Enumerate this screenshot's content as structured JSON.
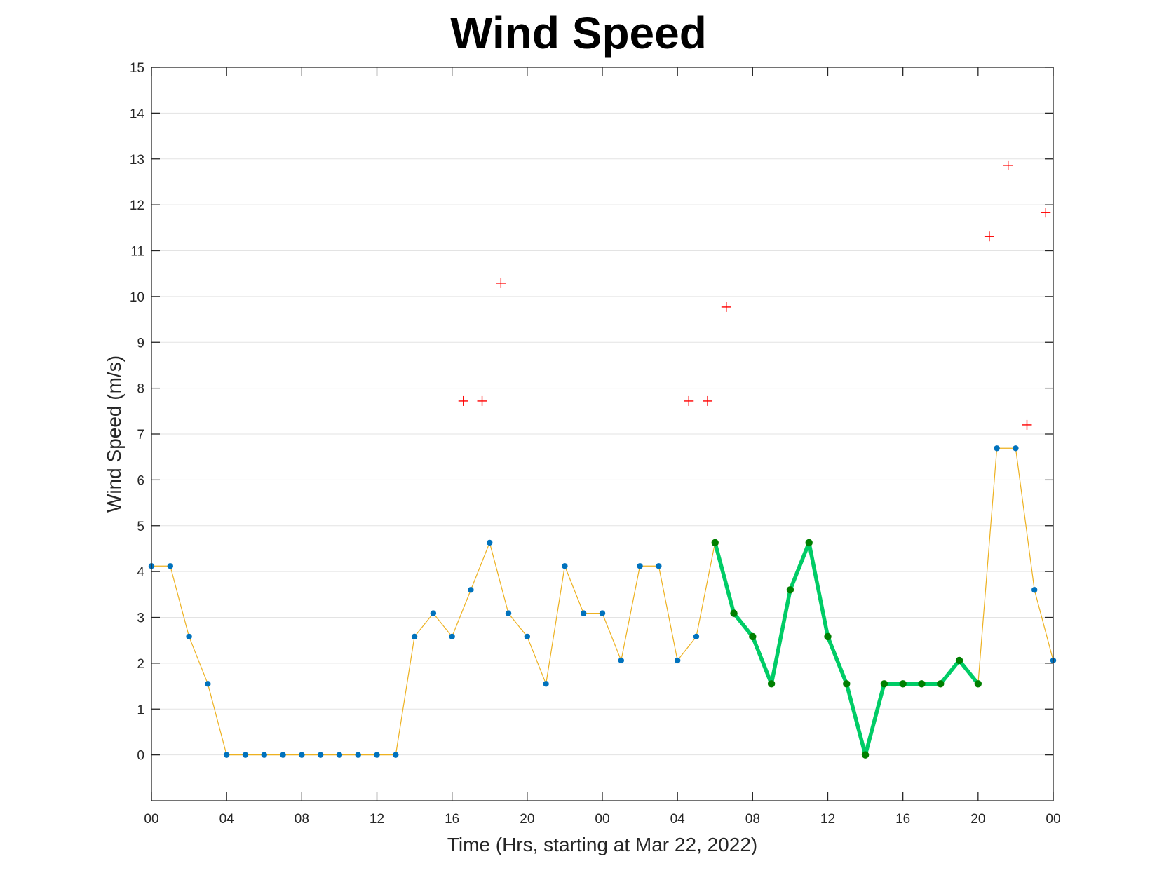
{
  "chart_data": {
    "type": "line",
    "title": "Wind Speed",
    "xlabel": "Time (Hrs, starting at Mar 22, 2022)",
    "ylabel": "Wind Speed (m/s)",
    "ylim": [
      -1,
      15
    ],
    "xlim": [
      0,
      48
    ],
    "grid": "horizontal",
    "y_ticks": [
      0,
      1,
      2,
      3,
      4,
      5,
      6,
      7,
      8,
      9,
      10,
      11,
      12,
      13,
      14,
      15
    ],
    "x_ticks": [
      {
        "value": 0,
        "label": "00"
      },
      {
        "value": 4,
        "label": "04"
      },
      {
        "value": 8,
        "label": "08"
      },
      {
        "value": 12,
        "label": "12"
      },
      {
        "value": 16,
        "label": "16"
      },
      {
        "value": 20,
        "label": "20"
      },
      {
        "value": 24,
        "label": "00"
      },
      {
        "value": 28,
        "label": "04"
      },
      {
        "value": 32,
        "label": "08"
      },
      {
        "value": 36,
        "label": "12"
      },
      {
        "value": 40,
        "label": "16"
      },
      {
        "value": 44,
        "label": "20"
      },
      {
        "value": 48,
        "label": "00"
      }
    ],
    "series": [
      {
        "color": "#EDB120",
        "marker_color": "#0072BD",
        "x": [
          0,
          1,
          2,
          3,
          4,
          5,
          6,
          7,
          8,
          9,
          10,
          11,
          12,
          13,
          14,
          15,
          16,
          17,
          18,
          19,
          20,
          21,
          22,
          23,
          24,
          25,
          26,
          27,
          28,
          29,
          30,
          31,
          32,
          33,
          34,
          35,
          36,
          37,
          38,
          39,
          40,
          41,
          42,
          43,
          44,
          45,
          46,
          47,
          48
        ],
        "y": [
          4.12,
          4.12,
          2.58,
          1.55,
          0,
          0,
          0,
          0,
          0,
          0,
          0,
          0,
          0,
          0,
          2.58,
          3.09,
          2.58,
          3.6,
          4.63,
          3.09,
          2.58,
          1.55,
          4.12,
          3.09,
          3.09,
          2.06,
          4.12,
          4.12,
          2.06,
          2.58,
          4.63,
          3.09,
          2.58,
          1.55,
          3.6,
          4.63,
          2.58,
          1.55,
          0,
          1.55,
          1.55,
          1.55,
          1.55,
          2.06,
          1.55,
          6.69,
          6.69,
          3.6,
          2.06
        ]
      },
      {
        "color": "#00CC66",
        "marker_color": "#007F00",
        "x": [
          30,
          31,
          32,
          33,
          34,
          35,
          36,
          37,
          38,
          39,
          40,
          41,
          42,
          43,
          44
        ],
        "y": [
          4.63,
          3.09,
          2.58,
          1.55,
          3.6,
          4.63,
          2.58,
          1.55,
          0,
          1.55,
          1.55,
          1.55,
          1.55,
          2.06,
          1.55
        ]
      },
      {
        "type": "scatter",
        "marker": "+",
        "color": "#FF0000",
        "x": [
          16.6,
          17.6,
          18.6,
          28.6,
          29.6,
          30.6,
          44.6,
          45.6,
          46.6,
          47.6
        ],
        "y": [
          7.72,
          7.72,
          10.29,
          7.72,
          7.72,
          9.77,
          11.31,
          12.86,
          7.2,
          11.83
        ]
      }
    ]
  }
}
